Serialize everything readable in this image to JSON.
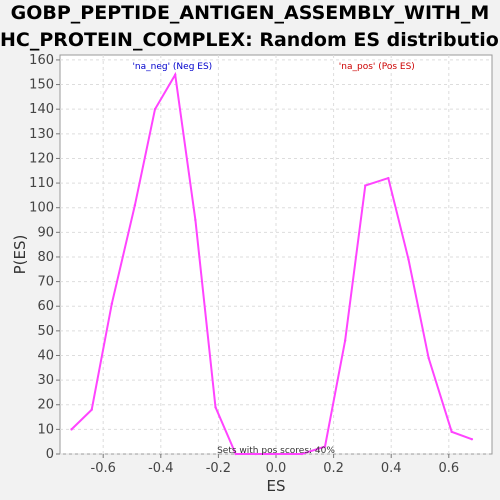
{
  "chart_data": {
    "type": "line",
    "title_line1": "GOBP_PEPTIDE_ANTIGEN_ASSEMBLY_WITH_M",
    "title_line2": "HC_PROTEIN_COMPLEX: Random ES distribution",
    "xlabel": "ES",
    "ylabel": "P(ES)",
    "xlim": [
      -0.75,
      0.75
    ],
    "ylim": [
      0,
      162
    ],
    "xticks": [
      -0.6,
      -0.4,
      -0.2,
      0.0,
      0.2,
      0.4,
      0.6
    ],
    "xtick_labels": [
      "-0.6",
      "-0.4",
      "-0.2",
      "0.0",
      "0.2",
      "0.4",
      "0.6"
    ],
    "yticks": [
      0,
      10,
      20,
      30,
      40,
      50,
      60,
      70,
      80,
      90,
      100,
      110,
      120,
      130,
      140,
      150,
      160
    ],
    "grid": true,
    "line_color": "#ff44ff",
    "series": [
      {
        "x": [
          -0.71,
          -0.64,
          -0.57,
          -0.49,
          -0.42,
          -0.35,
          -0.28,
          -0.21,
          -0.14,
          -0.07,
          0.0,
          0.09,
          0.17,
          0.24,
          0.31,
          0.39,
          0.46,
          0.53,
          0.61,
          0.68
        ],
        "values": [
          10,
          18,
          61,
          101,
          140,
          154,
          95,
          19,
          0,
          0,
          0,
          0,
          3,
          46,
          109,
          112,
          79,
          39,
          9,
          6
        ]
      }
    ],
    "annotations": {
      "neg_label": "'na_neg' (Neg ES)",
      "neg_color": "#0000cc",
      "pos_label": "'na_pos' (Pos ES)",
      "pos_color": "#cc0000",
      "pos_scores_note": "Sets with pos scores: 40%"
    }
  }
}
